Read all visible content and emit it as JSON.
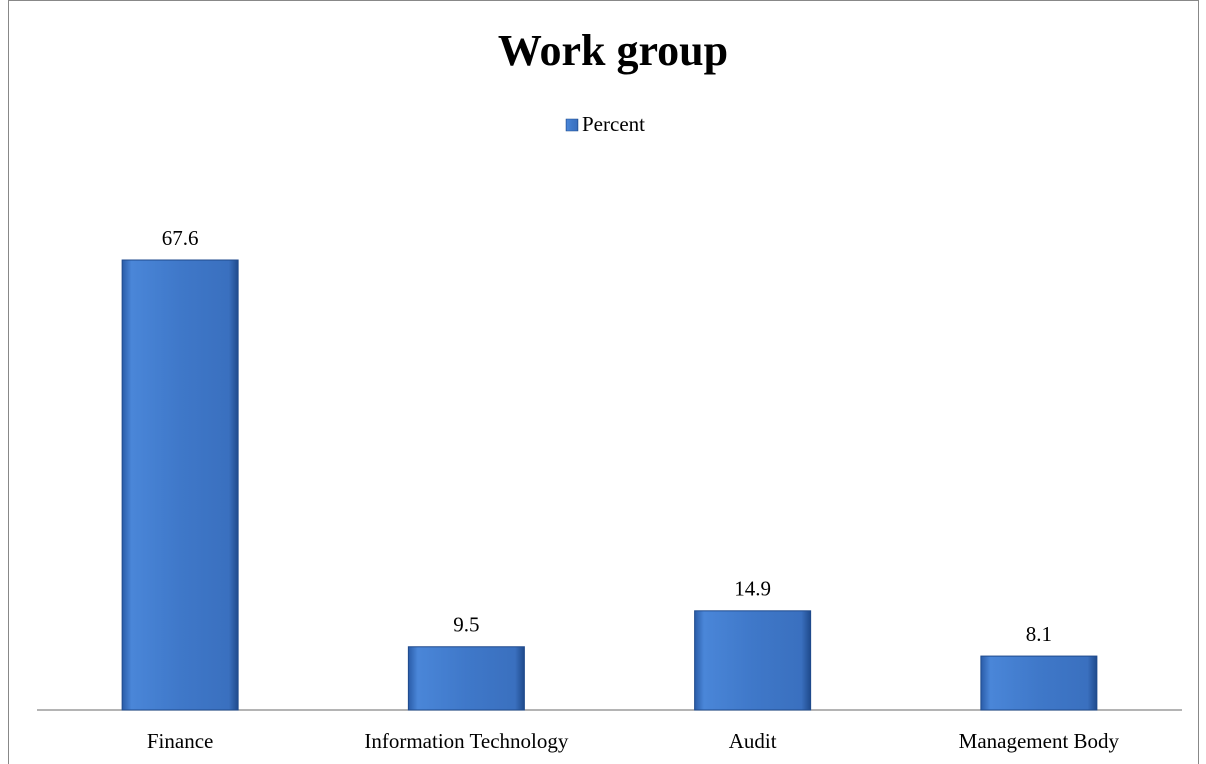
{
  "chart_data": {
    "type": "bar",
    "title": "Work group",
    "legend": "Percent",
    "categories": [
      "Finance",
      "Information Technology",
      "Audit",
      "Management Body"
    ],
    "values": [
      67.6,
      9.5,
      14.9,
      8.1
    ],
    "color": "#3f78c9"
  }
}
